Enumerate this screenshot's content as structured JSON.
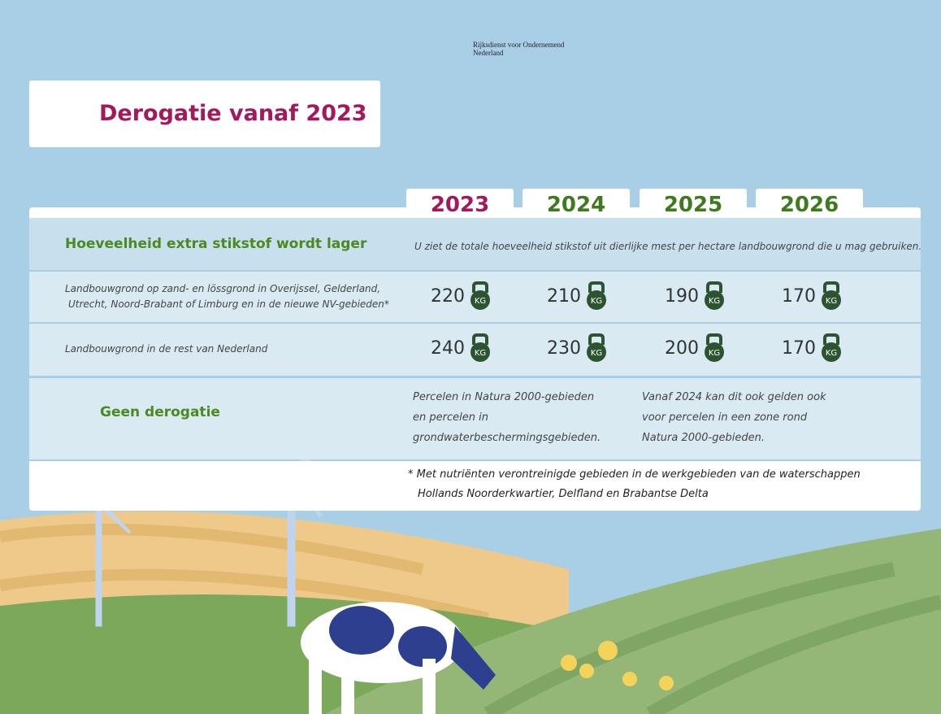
{
  "logo": {
    "line1": "Rijksdienst voor Ondernemend",
    "line2": "Nederland"
  },
  "title": "Derogatie vanaf 2023",
  "years": [
    "2023",
    "2024",
    "2025",
    "2026"
  ],
  "header_row": {
    "label": "Hoeveelheid extra stikstof wordt lager",
    "note": "U ziet de totale hoeveelheid stikstof uit dierlijke mest  per hectare landbouwgrond die u mag gebruiken."
  },
  "unit": "KG",
  "rows": [
    {
      "label": [
        "Landbouwgrond op zand- en lössgrond in Overijssel, Gelderland,",
        "Utrecht, Noord-Brabant of Limburg  en in de nieuwe NV-gebieden*"
      ],
      "values": [
        220,
        210,
        190,
        170
      ]
    },
    {
      "label": [
        "Landbouwgrond in de rest van Nederland"
      ],
      "values": [
        240,
        230,
        200,
        170
      ]
    }
  ],
  "no_derogation": {
    "label": "Geen  derogatie",
    "text1": [
      "Percelen in Natura 2000-gebieden",
      "en percelen in",
      "grondwaterbeschermingsgebieden."
    ],
    "text2": [
      "Vanaf 2024 kan dit ook gelden ook",
      "voor percelen in een zone rond",
      "Natura 2000-gebieden."
    ]
  },
  "footnote": [
    "* Met nutriënten verontreinigde gebieden in de werkgebieden van de waterschappen",
    "Hollands Noorderkwartier, Delfland en Brabantse Delta"
  ]
}
